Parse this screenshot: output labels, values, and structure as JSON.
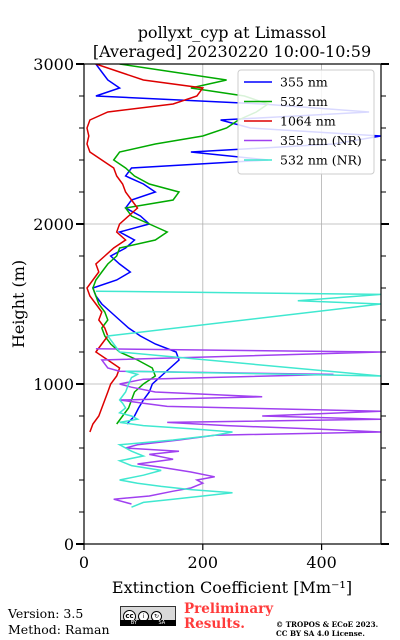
{
  "chart_data": {
    "type": "line",
    "title_line1": "pollyxt_cyp at Limassol",
    "title_line2": "[Averaged] 20230220 10:00-10:59",
    "xlabel": "Extinction Coefficient [Mm⁻¹]",
    "ylabel": "Height (m)",
    "xlim": [
      0,
      500
    ],
    "ylim": [
      0,
      3000
    ],
    "xticks": [
      0,
      200,
      400
    ],
    "yticks": [
      0,
      1000,
      2000,
      3000
    ],
    "grid": true,
    "legend_position": "top-right",
    "series": [
      {
        "name": "355 nm",
        "color": "#0000ff",
        "points": [
          [
            72,
            750
          ],
          [
            85,
            800
          ],
          [
            92,
            850
          ],
          [
            100,
            900
          ],
          [
            110,
            950
          ],
          [
            115,
            1000
          ],
          [
            130,
            1050
          ],
          [
            145,
            1100
          ],
          [
            160,
            1150
          ],
          [
            155,
            1200
          ],
          [
            120,
            1250
          ],
          [
            95,
            1300
          ],
          [
            75,
            1350
          ],
          [
            60,
            1400
          ],
          [
            45,
            1450
          ],
          [
            30,
            1500
          ],
          [
            20,
            1550
          ],
          [
            15,
            1600
          ],
          [
            55,
            1650
          ],
          [
            78,
            1700
          ],
          [
            60,
            1750
          ],
          [
            45,
            1800
          ],
          [
            70,
            1850
          ],
          [
            85,
            1900
          ],
          [
            60,
            1950
          ],
          [
            110,
            2000
          ],
          [
            95,
            2050
          ],
          [
            70,
            2100
          ],
          [
            80,
            2150
          ],
          [
            120,
            2200
          ],
          [
            100,
            2250
          ],
          [
            70,
            2300
          ],
          [
            80,
            2350
          ],
          [
            310,
            2400
          ],
          [
            180,
            2450
          ],
          [
            420,
            2500
          ],
          [
            500,
            2550
          ],
          [
            280,
            2600
          ],
          [
            230,
            2650
          ],
          [
            480,
            2700
          ],
          [
            300,
            2750
          ],
          [
            20,
            2800
          ],
          [
            60,
            2850
          ],
          [
            40,
            2900
          ],
          [
            30,
            2950
          ],
          [
            20,
            3000
          ]
        ]
      },
      {
        "name": "532 nm",
        "color": "#00aa00",
        "points": [
          [
            55,
            750
          ],
          [
            65,
            800
          ],
          [
            75,
            850
          ],
          [
            80,
            900
          ],
          [
            85,
            950
          ],
          [
            100,
            1000
          ],
          [
            120,
            1050
          ],
          [
            115,
            1100
          ],
          [
            90,
            1150
          ],
          [
            60,
            1200
          ],
          [
            45,
            1250
          ],
          [
            35,
            1300
          ],
          [
            30,
            1350
          ],
          [
            40,
            1400
          ],
          [
            35,
            1450
          ],
          [
            25,
            1500
          ],
          [
            20,
            1550
          ],
          [
            15,
            1600
          ],
          [
            20,
            1650
          ],
          [
            30,
            1700
          ],
          [
            40,
            1750
          ],
          [
            55,
            1800
          ],
          [
            60,
            1850
          ],
          [
            120,
            1900
          ],
          [
            140,
            1950
          ],
          [
            110,
            2000
          ],
          [
            80,
            2050
          ],
          [
            70,
            2100
          ],
          [
            150,
            2150
          ],
          [
            160,
            2200
          ],
          [
            110,
            2250
          ],
          [
            85,
            2300
          ],
          [
            70,
            2350
          ],
          [
            50,
            2400
          ],
          [
            60,
            2450
          ],
          [
            120,
            2500
          ],
          [
            200,
            2550
          ],
          [
            240,
            2600
          ],
          [
            260,
            2650
          ],
          [
            290,
            2700
          ],
          [
            310,
            2750
          ],
          [
            270,
            2800
          ],
          [
            180,
            2850
          ],
          [
            240,
            2900
          ],
          [
            150,
            2950
          ],
          [
            60,
            3000
          ]
        ]
      },
      {
        "name": "1064 nm",
        "color": "#dd0000",
        "points": [
          [
            10,
            700
          ],
          [
            15,
            750
          ],
          [
            25,
            800
          ],
          [
            30,
            850
          ],
          [
            35,
            900
          ],
          [
            40,
            950
          ],
          [
            45,
            1000
          ],
          [
            55,
            1050
          ],
          [
            60,
            1100
          ],
          [
            40,
            1150
          ],
          [
            20,
            1200
          ],
          [
            30,
            1250
          ],
          [
            40,
            1300
          ],
          [
            35,
            1350
          ],
          [
            25,
            1400
          ],
          [
            30,
            1450
          ],
          [
            20,
            1500
          ],
          [
            10,
            1550
          ],
          [
            5,
            1600
          ],
          [
            15,
            1650
          ],
          [
            25,
            1700
          ],
          [
            20,
            1750
          ],
          [
            35,
            1800
          ],
          [
            50,
            1850
          ],
          [
            70,
            1900
          ],
          [
            55,
            1950
          ],
          [
            60,
            2000
          ],
          [
            75,
            2050
          ],
          [
            90,
            2100
          ],
          [
            80,
            2150
          ],
          [
            70,
            2200
          ],
          [
            65,
            2250
          ],
          [
            55,
            2300
          ],
          [
            50,
            2350
          ],
          [
            30,
            2400
          ],
          [
            10,
            2450
          ],
          [
            5,
            2500
          ],
          [
            8,
            2550
          ],
          [
            5,
            2600
          ],
          [
            10,
            2650
          ],
          [
            40,
            2700
          ],
          [
            150,
            2750
          ],
          [
            190,
            2800
          ],
          [
            200,
            2850
          ],
          [
            100,
            2900
          ],
          [
            60,
            2950
          ],
          [
            20,
            3000
          ]
        ]
      },
      {
        "name": "355 nm (NR)",
        "color": "#a040f0",
        "points": [
          [
            80,
            250
          ],
          [
            50,
            280
          ],
          [
            110,
            300
          ],
          [
            150,
            330
          ],
          [
            180,
            350
          ],
          [
            200,
            380
          ],
          [
            190,
            400
          ],
          [
            220,
            420
          ],
          [
            180,
            450
          ],
          [
            130,
            480
          ],
          [
            90,
            500
          ],
          [
            150,
            530
          ],
          [
            110,
            560
          ],
          [
            160,
            580
          ],
          [
            70,
            600
          ],
          [
            90,
            620
          ],
          [
            160,
            650
          ],
          [
            220,
            680
          ],
          [
            500,
            700
          ],
          [
            380,
            720
          ],
          [
            240,
            740
          ],
          [
            140,
            760
          ],
          [
            500,
            780
          ],
          [
            300,
            800
          ],
          [
            500,
            830
          ],
          [
            140,
            860
          ],
          [
            100,
            880
          ],
          [
            60,
            900
          ],
          [
            300,
            920
          ],
          [
            120,
            950
          ],
          [
            80,
            980
          ],
          [
            60,
            1000
          ],
          [
            100,
            1030
          ],
          [
            420,
            1060
          ],
          [
            60,
            1080
          ],
          [
            40,
            1100
          ],
          [
            30,
            1150
          ],
          [
            500,
            1200
          ],
          [
            20,
            1220
          ]
        ]
      },
      {
        "name": "532 nm (NR)",
        "color": "#40e8d0",
        "points": [
          [
            80,
            230
          ],
          [
            100,
            260
          ],
          [
            150,
            280
          ],
          [
            200,
            300
          ],
          [
            250,
            320
          ],
          [
            180,
            340
          ],
          [
            130,
            360
          ],
          [
            90,
            380
          ],
          [
            60,
            400
          ],
          [
            100,
            430
          ],
          [
            130,
            460
          ],
          [
            80,
            490
          ],
          [
            60,
            520
          ],
          [
            100,
            550
          ],
          [
            80,
            580
          ],
          [
            60,
            620
          ],
          [
            150,
            650
          ],
          [
            220,
            680
          ],
          [
            250,
            700
          ],
          [
            180,
            720
          ],
          [
            100,
            740
          ],
          [
            60,
            760
          ],
          [
            90,
            780
          ],
          [
            80,
            800
          ],
          [
            60,
            820
          ],
          [
            70,
            850
          ],
          [
            65,
            880
          ],
          [
            60,
            900
          ],
          [
            70,
            950
          ],
          [
            75,
            1000
          ],
          [
            80,
            1040
          ],
          [
            90,
            1060
          ],
          [
            70,
            1080
          ],
          [
            500,
            1050
          ],
          [
            60,
            1200
          ],
          [
            40,
            1300
          ],
          [
            500,
            1500
          ],
          [
            360,
            1520
          ],
          [
            500,
            1560
          ],
          [
            20,
            1580
          ]
        ]
      }
    ]
  },
  "footer": {
    "version": "Version: 3.5",
    "method": "Method: Raman",
    "preliminary_line1": "Preliminary",
    "preliminary_line2": "Results.",
    "copyright_line1": "© TROPOS & ECoE 2023.",
    "copyright_line2": "CC BY SA 4.0 License.",
    "license_badge": {
      "cc": "cc",
      "by": "BY",
      "sa": "SA"
    }
  }
}
